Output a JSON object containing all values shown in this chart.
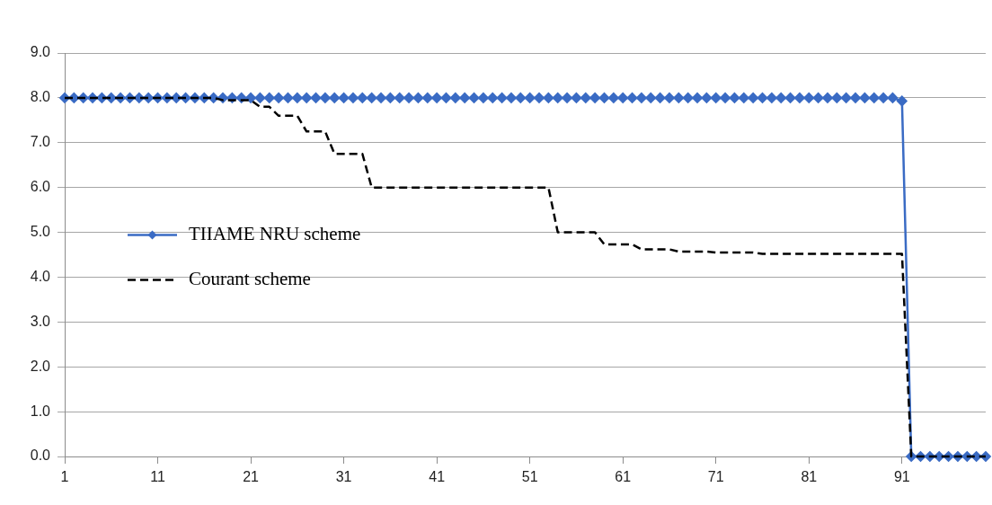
{
  "chart_data": {
    "type": "line",
    "categories": [
      "1",
      null,
      null,
      null,
      null,
      null,
      null,
      null,
      null,
      null,
      "11",
      null,
      null,
      null,
      null,
      null,
      null,
      null,
      null,
      null,
      "21",
      null,
      null,
      null,
      null,
      null,
      null,
      null,
      null,
      null,
      "31",
      null,
      null,
      null,
      null,
      null,
      null,
      null,
      null,
      null,
      "41",
      null,
      null,
      null,
      null,
      null,
      null,
      null,
      null,
      null,
      "51",
      null,
      null,
      null,
      null,
      null,
      null,
      null,
      null,
      null,
      "61",
      null,
      null,
      null,
      null,
      null,
      null,
      null,
      null,
      null,
      "71",
      null,
      null,
      null,
      null,
      null,
      null,
      null,
      null,
      null,
      "81",
      null,
      null,
      null,
      null,
      null,
      null,
      null,
      null,
      null,
      "91",
      null,
      null,
      null,
      null,
      null,
      null,
      null,
      null,
      null
    ],
    "series": [
      {
        "name": "TIIAME NRU scheme",
        "color": "#3a6bc4",
        "marker": "diamond",
        "line_style": "solid",
        "values": [
          8,
          8,
          8,
          8,
          8,
          8,
          8,
          8,
          8,
          8,
          8,
          8,
          8,
          8,
          8,
          8,
          8,
          8,
          8,
          8,
          8,
          8,
          8,
          8,
          8,
          8,
          8,
          8,
          8,
          8,
          8,
          8,
          8,
          8,
          8,
          8,
          8,
          8,
          8,
          8,
          8,
          8,
          8,
          8,
          8,
          8,
          8,
          8,
          8,
          8,
          8,
          8,
          8,
          8,
          8,
          8,
          8,
          8,
          8,
          8,
          8,
          8,
          8,
          8,
          8,
          8,
          8,
          8,
          8,
          8,
          8,
          8,
          8,
          8,
          8,
          8,
          8,
          8,
          8,
          8,
          8,
          8,
          8,
          8,
          8,
          8,
          8,
          8,
          8,
          8,
          7.93,
          0,
          0,
          0,
          0,
          0,
          0,
          0,
          0,
          0
        ]
      },
      {
        "name": "Courant scheme",
        "color": "#000000",
        "marker": "none",
        "line_style": "dashed",
        "values": [
          8,
          8,
          8,
          8,
          8,
          8,
          8,
          8,
          8,
          8,
          8,
          8,
          8,
          8,
          8,
          8,
          8,
          7.95,
          7.95,
          7.95,
          7.95,
          7.8,
          7.8,
          7.6,
          7.6,
          7.6,
          7.25,
          7.25,
          7.25,
          6.75,
          6.75,
          6.75,
          6.75,
          6,
          6,
          6,
          6,
          6,
          6,
          6,
          6,
          6,
          6,
          6,
          6,
          6,
          6,
          6,
          6,
          6,
          6,
          6,
          6,
          5,
          5,
          5,
          5,
          5,
          4.73,
          4.73,
          4.73,
          4.73,
          4.62,
          4.62,
          4.62,
          4.62,
          4.57,
          4.57,
          4.57,
          4.57,
          4.55,
          4.55,
          4.55,
          4.55,
          4.55,
          4.52,
          4.52,
          4.52,
          4.52,
          4.52,
          4.52,
          4.52,
          4.52,
          4.52,
          4.52,
          4.52,
          4.52,
          4.52,
          4.52,
          4.52,
          4.52,
          0,
          0,
          0,
          0,
          0,
          0,
          0,
          0,
          0
        ]
      }
    ],
    "ylim": [
      0,
      9
    ],
    "yticks": [
      {
        "value": 0,
        "label": "0.0"
      },
      {
        "value": 1,
        "label": "1.0"
      },
      {
        "value": 2,
        "label": "2.0"
      },
      {
        "value": 3,
        "label": "3.0"
      },
      {
        "value": 4,
        "label": "4.0"
      },
      {
        "value": 5,
        "label": "5.0"
      },
      {
        "value": 6,
        "label": "6.0"
      },
      {
        "value": 7,
        "label": "7.0"
      },
      {
        "value": 8,
        "label": "8.0"
      },
      {
        "value": 9,
        "label": "9.0"
      }
    ],
    "grid": "y",
    "legend": "left"
  }
}
